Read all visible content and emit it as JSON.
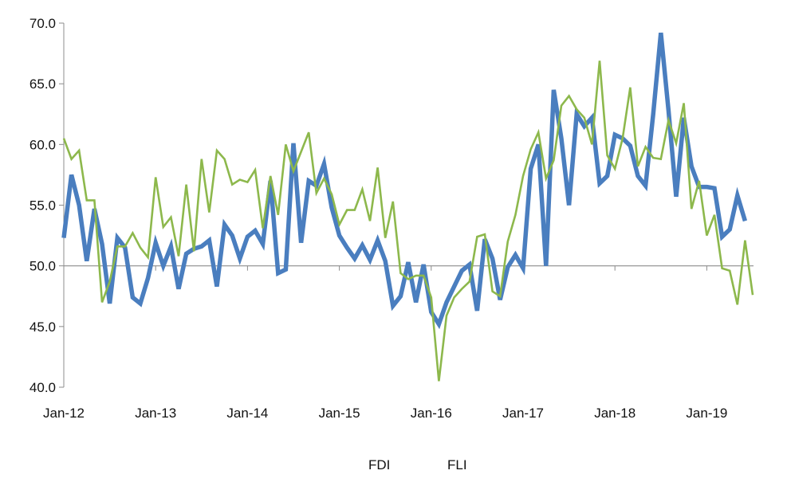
{
  "chart_data": {
    "type": "line",
    "title": "",
    "xlabel": "",
    "ylabel": "",
    "ylim": [
      40,
      70
    ],
    "yticks": [
      "40.0",
      "45.0",
      "50.0",
      "55.0",
      "60.0",
      "65.0",
      "70.0"
    ],
    "reference_line": 50,
    "start": "Jan-12",
    "xticks": [
      {
        "label": "Jan-12",
        "index": 0
      },
      {
        "label": "Jan-13",
        "index": 12
      },
      {
        "label": "Jan-14",
        "index": 24
      },
      {
        "label": "Jan-15",
        "index": 36
      },
      {
        "label": "Jan-16",
        "index": 48
      },
      {
        "label": "Jan-17",
        "index": 60
      },
      {
        "label": "Jan-18",
        "index": 72
      },
      {
        "label": "Jan-19",
        "index": 84
      }
    ],
    "legend": [
      "FDI",
      "FLI"
    ],
    "series": [
      {
        "name": "FDI",
        "color": "#4a7ebf",
        "values": [
          52.3,
          57.5,
          55.0,
          50.4,
          54.7,
          51.8,
          46.9,
          52.3,
          51.5,
          47.4,
          46.9,
          49.0,
          51.9,
          50.0,
          51.6,
          48.1,
          51.0,
          51.4,
          51.6,
          52.1,
          48.3,
          53.4,
          52.5,
          50.6,
          52.4,
          52.9,
          51.8,
          57.0,
          49.4,
          49.7,
          60.1,
          51.9,
          57.0,
          56.6,
          58.4,
          54.8,
          52.5,
          51.5,
          50.6,
          51.7,
          50.5,
          52.1,
          50.4,
          46.7,
          47.5,
          50.3,
          47.0,
          50.1,
          46.2,
          45.2,
          47.0,
          48.3,
          49.6,
          50.1,
          46.3,
          52.2,
          50.6,
          47.2,
          49.9,
          50.9,
          49.8,
          58.0,
          60.0,
          50.0,
          64.5,
          60.5,
          55.0,
          62.5,
          61.5,
          62.2,
          56.8,
          57.4,
          60.8,
          60.5,
          59.9,
          57.4,
          56.6,
          62.5,
          69.2,
          62.8,
          55.7,
          62.2,
          58.2,
          56.5,
          56.5,
          56.4,
          52.4,
          53.0,
          55.8,
          53.7
        ]
      },
      {
        "name": "FLI",
        "color": "#8db84c",
        "values": [
          60.5,
          58.8,
          59.5,
          55.4,
          55.4,
          47.0,
          48.7,
          51.6,
          51.6,
          52.7,
          51.5,
          50.7,
          57.3,
          53.2,
          54.0,
          50.8,
          56.7,
          51.2,
          58.8,
          54.4,
          59.5,
          58.8,
          56.7,
          57.1,
          56.9,
          57.9,
          53.1,
          57.4,
          54.2,
          60.0,
          57.8,
          59.4,
          61.0,
          56.0,
          57.2,
          55.9,
          53.4,
          54.6,
          54.6,
          56.3,
          53.7,
          58.1,
          52.3,
          55.3,
          49.4,
          48.9,
          49.2,
          49.2,
          47.4,
          40.5,
          45.9,
          47.4,
          48.1,
          48.7,
          52.4,
          52.6,
          47.9,
          47.5,
          52.0,
          54.2,
          57.4,
          59.6,
          61.0,
          57.2,
          58.7,
          63.2,
          64.0,
          62.9,
          62.2,
          60.0,
          66.9,
          59.1,
          58.0,
          60.5,
          64.7,
          58.2,
          59.8,
          58.9,
          58.8,
          62.0,
          60.1,
          63.4,
          54.7,
          57.0,
          52.5,
          54.2,
          49.8,
          49.6,
          46.8,
          52.1,
          47.6
        ]
      }
    ]
  }
}
